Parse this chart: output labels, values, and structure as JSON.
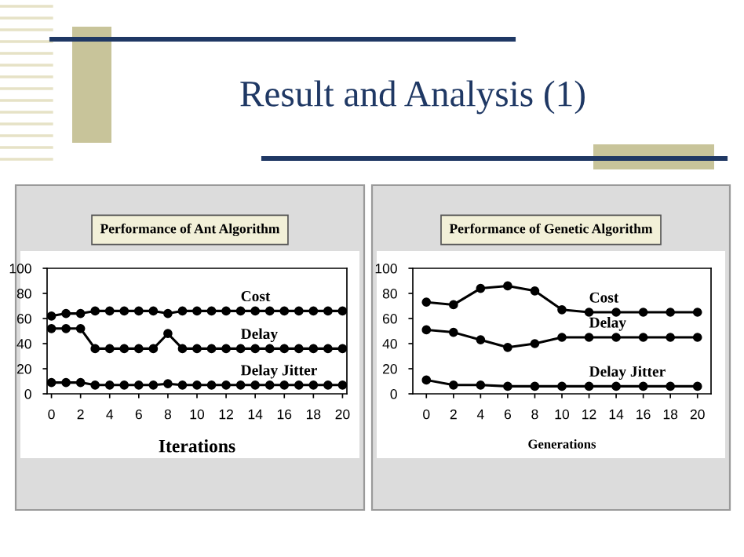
{
  "chart_data": [
    {
      "type": "line",
      "title": "Performance of Ant Algorithm",
      "xlabel": "Iterations",
      "annotations": [
        "Result and Analysis (1)"
      ],
      "x": [
        0,
        1,
        2,
        3,
        4,
        5,
        6,
        7,
        8,
        9,
        10,
        11,
        12,
        13,
        14,
        15,
        16,
        17,
        18,
        19,
        20
      ],
      "series": [
        {
          "name": "Cost",
          "color": "#000000",
          "values": [
            62,
            64,
            64,
            66,
            66,
            66,
            66,
            66,
            64,
            66,
            66,
            66,
            66,
            66,
            66,
            66,
            66,
            66,
            66,
            66,
            66
          ]
        },
        {
          "name": "Delay",
          "color": "#000000",
          "values": [
            52,
            52,
            52,
            36,
            36,
            36,
            36,
            36,
            48,
            36,
            36,
            36,
            36,
            36,
            36,
            36,
            36,
            36,
            36,
            36,
            36
          ]
        },
        {
          "name": "Delay Jitter",
          "color": "#000000",
          "values": [
            9,
            9,
            9,
            7,
            7,
            7,
            7,
            7,
            8,
            7,
            7,
            7,
            7,
            7,
            7,
            7,
            7,
            7,
            7,
            7,
            7
          ]
        }
      ],
      "xlim": [
        -0.3,
        20.3
      ],
      "ylim": [
        0,
        100
      ],
      "xticks": [
        0,
        2,
        4,
        6,
        8,
        10,
        12,
        14,
        16,
        18,
        20
      ],
      "yticks": [
        0,
        20,
        40,
        60,
        80,
        100
      ],
      "marker": "circle",
      "grid": false
    },
    {
      "type": "line",
      "title": "Performance of Genetic Algorithm",
      "xlabel": "Generations",
      "x": [
        0,
        2,
        4,
        6,
        8,
        10,
        12,
        14,
        16,
        18,
        20
      ],
      "series": [
        {
          "name": "Cost",
          "color": "#000000",
          "values": [
            73,
            71,
            84,
            86,
            82,
            67,
            65,
            65,
            65,
            65,
            65
          ]
        },
        {
          "name": "Delay",
          "color": "#000000",
          "values": [
            51,
            49,
            43,
            37,
            40,
            45,
            45,
            45,
            45,
            45,
            45
          ]
        },
        {
          "name": "Delay Jitter",
          "color": "#000000",
          "values": [
            11,
            7,
            7,
            6,
            6,
            6,
            6,
            6,
            6,
            6,
            6
          ]
        }
      ],
      "xlim": [
        -1,
        21
      ],
      "ylim": [
        0,
        100
      ],
      "xticks": [
        0,
        2,
        4,
        6,
        8,
        10,
        12,
        14,
        16,
        18,
        20
      ],
      "yticks": [
        0,
        20,
        40,
        60,
        80,
        100
      ],
      "marker": "circle",
      "grid": false
    }
  ]
}
